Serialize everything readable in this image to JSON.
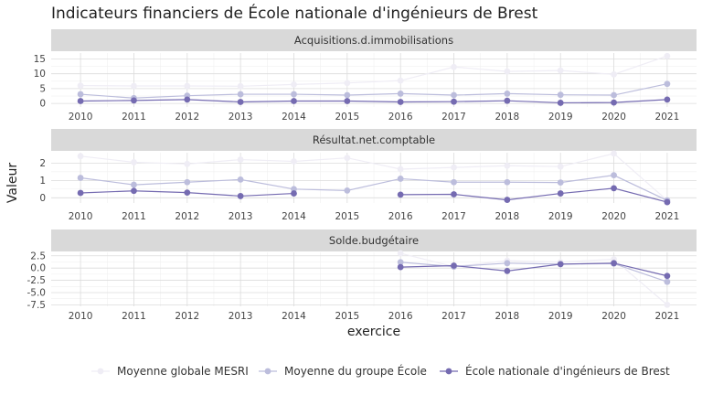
{
  "chart_data": {
    "type": "line",
    "title": "Indicateurs financiers de École nationale d'ingénieurs de Brest",
    "xlabel": "exercice",
    "ylabel": "Valeur",
    "x": [
      2010,
      2011,
      2012,
      2013,
      2014,
      2015,
      2016,
      2017,
      2018,
      2019,
      2020,
      2021
    ],
    "legend_position": "bottom",
    "series_styles": [
      {
        "name": "Moyenne globale MESRI",
        "color": "#efedf5"
      },
      {
        "name": "Moyenne du groupe École",
        "color": "#bcbddc"
      },
      {
        "name": "École nationale d'ingénieurs de Brest",
        "color": "#756bb1"
      }
    ],
    "panels": [
      {
        "strip": "Acquisitions.d.immobilisations",
        "ylim": [
          -1.2,
          17
        ],
        "yticks": [
          0,
          5,
          10,
          15
        ],
        "ytick_labels": [
          "0",
          "5",
          "10",
          "15"
        ],
        "series": [
          {
            "name": "Moyenne globale MESRI",
            "values": [
              6.0,
              5.9,
              5.9,
              5.8,
              6.4,
              6.9,
              7.7,
              12.3,
              10.8,
              11.1,
              9.8,
              16.0
            ]
          },
          {
            "name": "Moyenne du groupe École",
            "values": [
              3.1,
              1.8,
              2.6,
              3.1,
              3.1,
              2.8,
              3.3,
              2.8,
              3.3,
              2.9,
              2.8,
              6.6
            ]
          },
          {
            "name": "École nationale d'ingénieurs de Brest",
            "values": [
              0.8,
              1.0,
              1.3,
              0.5,
              0.8,
              0.8,
              0.5,
              0.6,
              0.9,
              0.2,
              0.3,
              1.3
            ]
          }
        ]
      },
      {
        "strip": "Résultat.net.comptable",
        "ylim": [
          -0.3,
          2.6
        ],
        "yticks": [
          0,
          1,
          2
        ],
        "ytick_labels": [
          "0",
          "1",
          "2"
        ],
        "series": [
          {
            "name": "Moyenne globale MESRI",
            "values": [
              2.4,
              2.05,
              1.95,
              2.2,
              2.1,
              2.3,
              1.65,
              1.75,
              1.85,
              1.8,
              2.55,
              -0.15
            ]
          },
          {
            "name": "Moyenne du groupe École",
            "values": [
              1.15,
              0.75,
              0.9,
              1.05,
              0.5,
              0.42,
              1.1,
              0.9,
              0.9,
              0.88,
              1.3,
              -0.15
            ]
          },
          {
            "name": "École nationale d'ingénieurs de Brest",
            "values": [
              0.28,
              0.4,
              0.3,
              0.1,
              0.25,
              null,
              0.18,
              0.2,
              -0.12,
              0.25,
              0.55,
              -0.25
            ]
          }
        ]
      },
      {
        "strip": "Solde.budgétaire",
        "ylim": [
          -7.8,
          3.2
        ],
        "yticks": [
          -7.5,
          -5.0,
          -2.5,
          0.0,
          2.5
        ],
        "ytick_labels": [
          "-7.5",
          "-5.0",
          "-2.5",
          "0.0",
          "2.5"
        ],
        "series": [
          {
            "name": "Moyenne globale MESRI",
            "values": [
              null,
              null,
              null,
              null,
              null,
              null,
              3.0,
              0.3,
              1.5,
              1.2,
              1.8,
              -7.5
            ]
          },
          {
            "name": "Moyenne du groupe École",
            "values": [
              null,
              null,
              null,
              null,
              null,
              null,
              1.2,
              0.3,
              1.0,
              0.8,
              0.9,
              -2.8
            ]
          },
          {
            "name": "École nationale d'ingénieurs de Brest",
            "values": [
              null,
              null,
              null,
              null,
              null,
              null,
              0.2,
              0.5,
              -0.6,
              0.8,
              1.0,
              -1.6
            ]
          }
        ]
      }
    ]
  }
}
